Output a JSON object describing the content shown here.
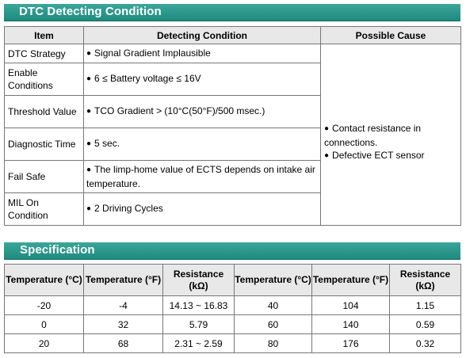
{
  "dtc_section": {
    "title": "DTC Detecting Condition",
    "headers": {
      "item": "Item",
      "condition": "Detecting Condition",
      "cause": "Possible Cause"
    },
    "rows": [
      {
        "item": "DTC Strategy",
        "condition": "Signal Gradient Implausible"
      },
      {
        "item": "Enable Conditions",
        "condition": "6 ≤ Battery voltage ≤ 16V"
      },
      {
        "item": "Threshold Value",
        "condition": "TCO Gradient > (10°C(50°F)/500 msec.)"
      },
      {
        "item": "Diagnostic Time",
        "condition": "5 sec."
      },
      {
        "item": "Fail Safe",
        "condition": "The limp-home value of ECTS depends on intake air temperature."
      },
      {
        "item": "MIL On Condition",
        "condition": "2 Driving Cycles"
      }
    ],
    "possible_causes": [
      "Contact resistance in connections.",
      "Defective ECT sensor"
    ]
  },
  "spec_section": {
    "title": "Specification",
    "headers": {
      "temp_c": "Temperature (°C)",
      "temp_f": "Temperature (°F)",
      "resistance": "Resistance (kΩ)"
    },
    "rows": [
      {
        "c1": "-20",
        "f1": "-4",
        "r1": "14.13 ~ 16.83",
        "c2": "40",
        "f2": "104",
        "r2": "1.15"
      },
      {
        "c1": "0",
        "f1": "32",
        "r1": "5.79",
        "c2": "60",
        "f2": "140",
        "r2": "0.59"
      },
      {
        "c1": "20",
        "f1": "68",
        "r1": "2.31 ~ 2.59",
        "c2": "80",
        "f2": "176",
        "r2": "0.32"
      }
    ]
  }
}
